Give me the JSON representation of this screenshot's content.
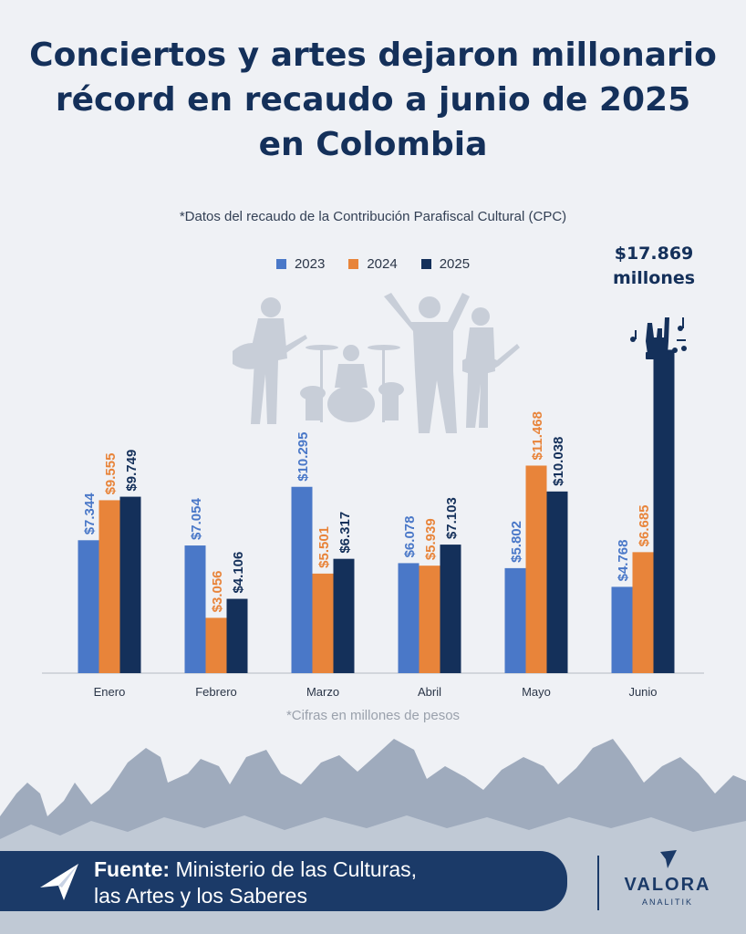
{
  "title_lines": [
    "Conciertos y artes dejaron millonario",
    "récord en recaudo a junio de 2025",
    "en Colombia"
  ],
  "subtitle": "*Datos del recaudo de la Contribución Parafiscal Cultural (CPC)",
  "note": "*Cifras en millones de pesos",
  "callout": {
    "line1": "$17.869",
    "line2": "millones"
  },
  "source": {
    "label": "Fuente:",
    "line1": "Ministerio de las Culturas,",
    "line2": "las Artes y los Saberes"
  },
  "logo": {
    "name": "VALORA",
    "sub": "ANALITIK"
  },
  "colors": {
    "2023": "#4a78c8",
    "2024": "#e8843a",
    "2025": "#14305a",
    "title": "#14305a",
    "footer": "#1b3a68"
  },
  "chart_data": {
    "type": "bar",
    "categories": [
      "Enero",
      "Febrero",
      "Marzo",
      "Abril",
      "Mayo",
      "Junio"
    ],
    "series": [
      {
        "name": "2023",
        "values": [
          7344,
          7054,
          10295,
          6078,
          5802,
          4768
        ],
        "labels": [
          "$7.344",
          "$7.054",
          "$10.295",
          "$6.078",
          "$5.802",
          "$4.768"
        ]
      },
      {
        "name": "2024",
        "values": [
          9555,
          3056,
          5501,
          5939,
          11468,
          6685
        ],
        "labels": [
          "$9.555",
          "$3.056",
          "$5.501",
          "$5.939",
          "$11.468",
          "$6.685"
        ]
      },
      {
        "name": "2025",
        "values": [
          9749,
          4106,
          6317,
          7103,
          10038,
          17869
        ],
        "labels": [
          "$9.749",
          "$4.106",
          "$6.317",
          "$7.103",
          "$10.038",
          ""
        ]
      }
    ],
    "legend": "top-center",
    "grid": false
  }
}
